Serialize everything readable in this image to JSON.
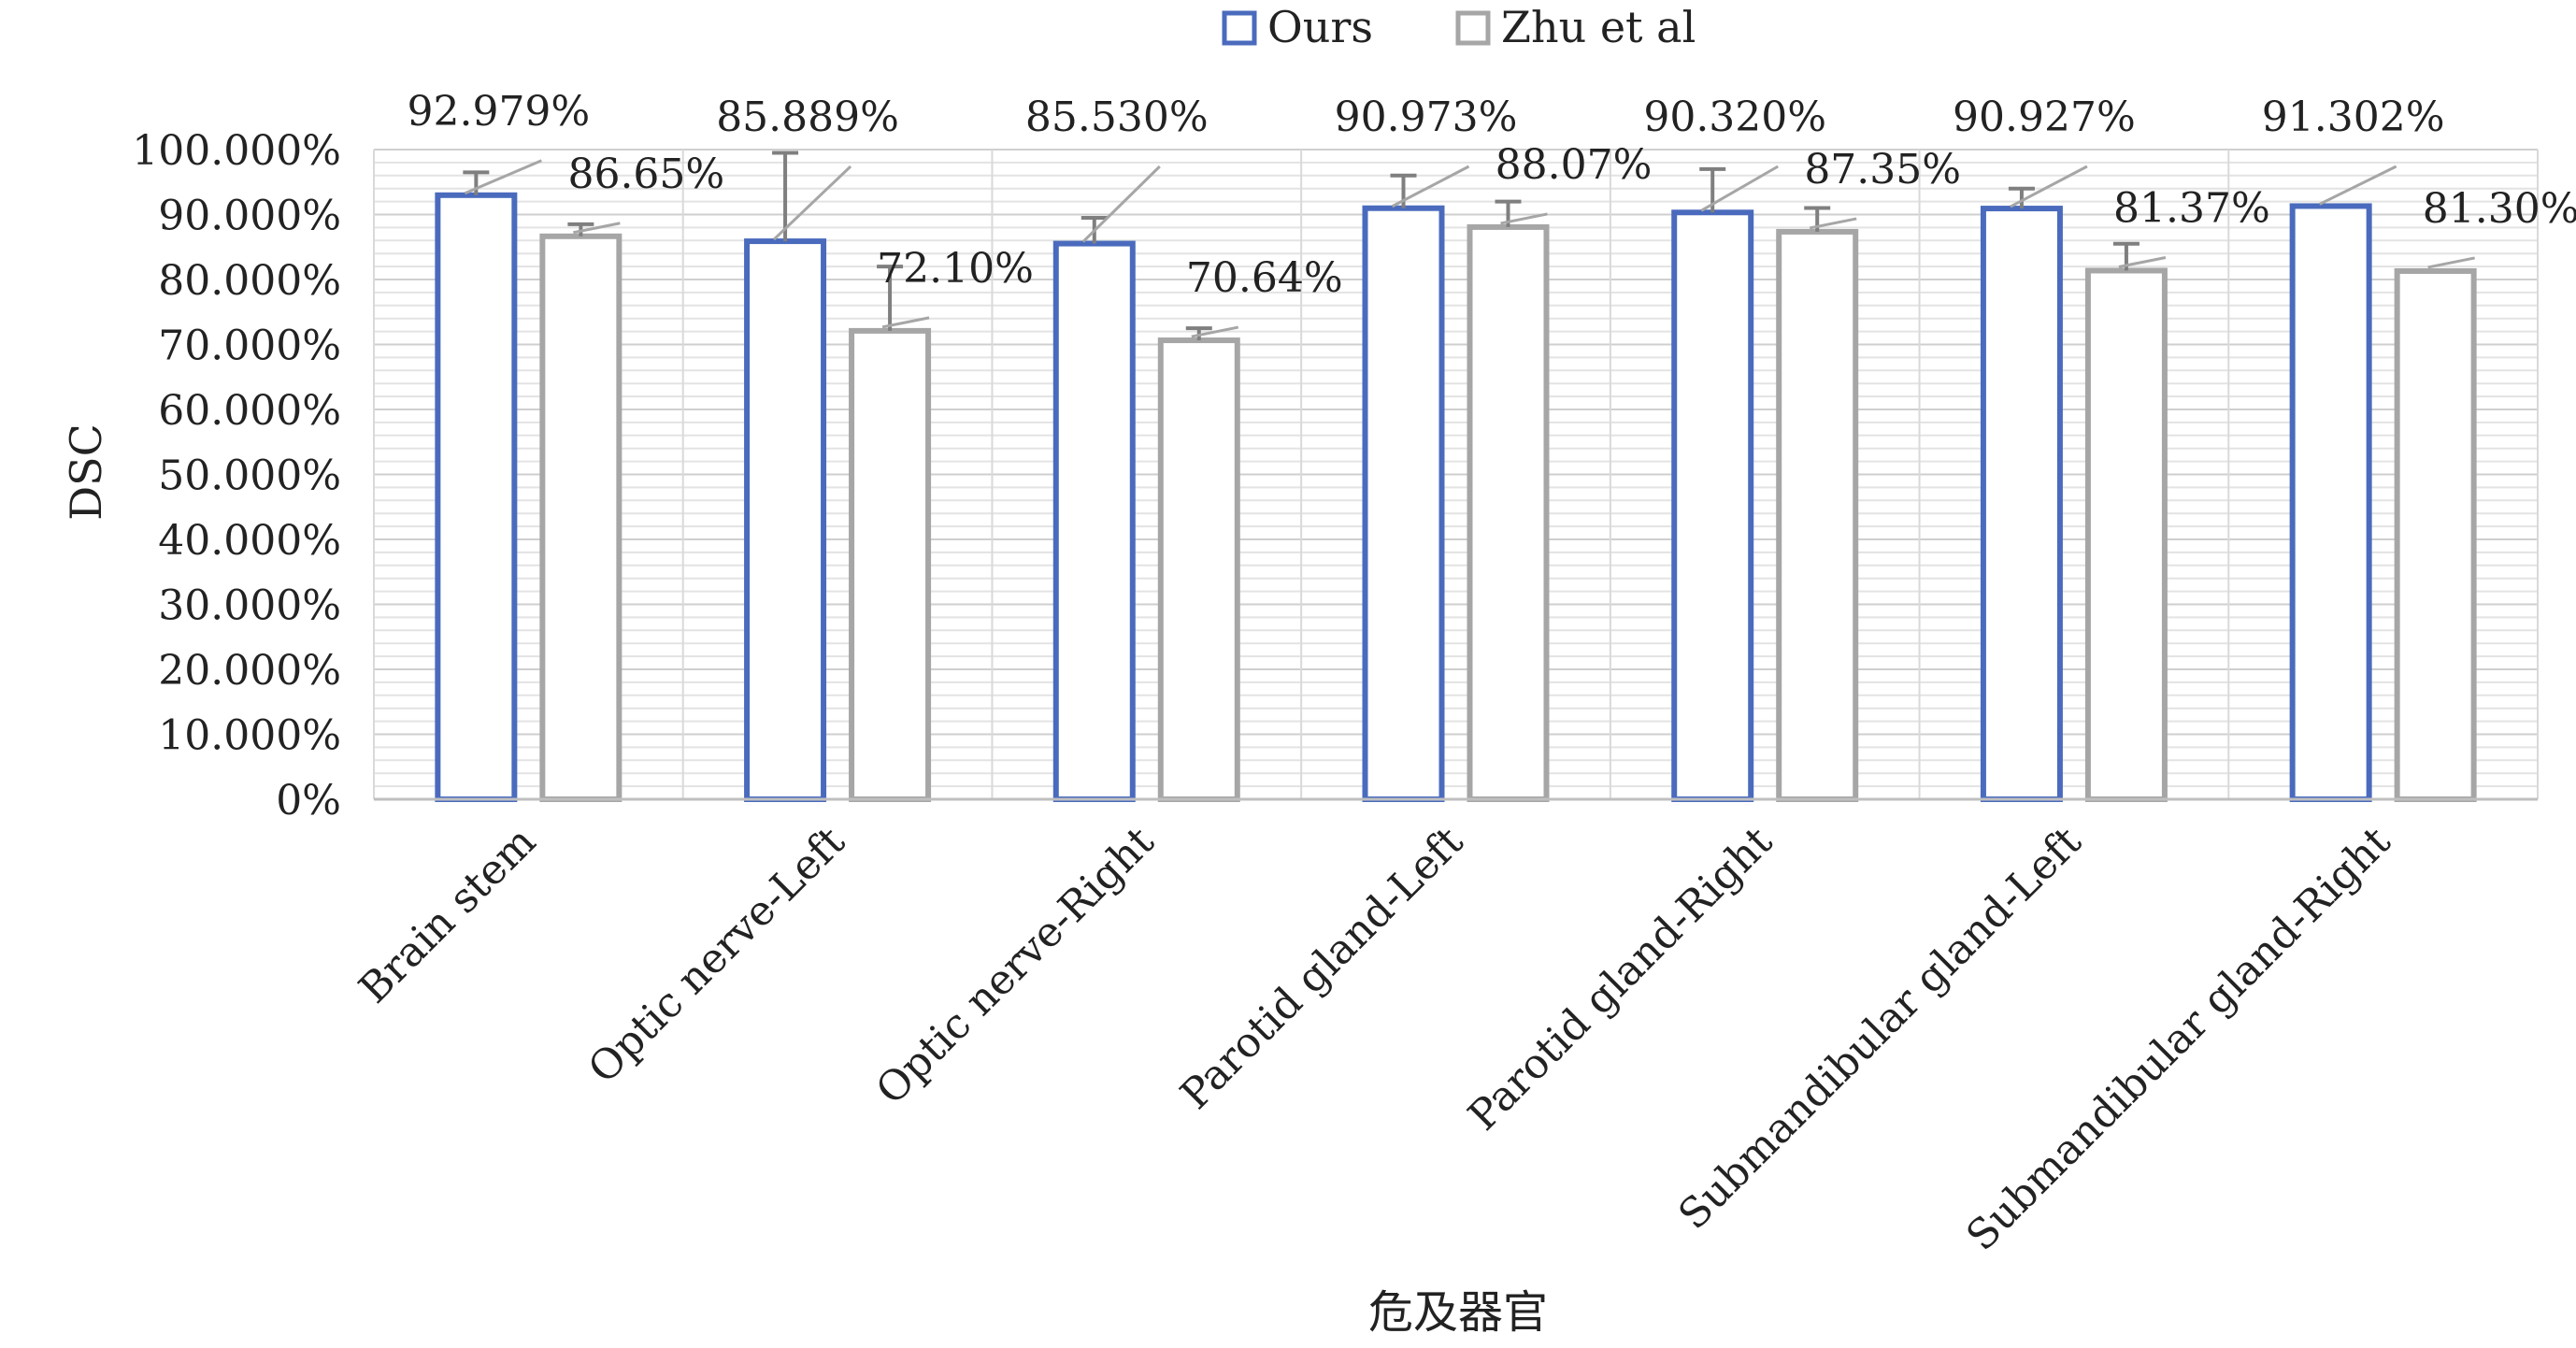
{
  "chart_data": {
    "type": "bar",
    "title": "",
    "xlabel": "危及器官",
    "ylabel": "DSC",
    "ylim": [
      0,
      100
    ],
    "y_tick_values": [
      0,
      10,
      20,
      30,
      40,
      50,
      60,
      70,
      80,
      90,
      100
    ],
    "y_tick_labels": [
      "0%",
      "10.000%",
      "20.000%",
      "30.000%",
      "40.000%",
      "50.000%",
      "60.000%",
      "70.000%",
      "80.000%",
      "90.000%",
      "100.000%"
    ],
    "grid": true,
    "legend_position": "top-center",
    "categories": [
      "Brain stem",
      "Optic nerve-Left",
      "Optic nerve-Right",
      "Parotid gland-Left",
      "Parotid gland-Right",
      "Submandibular gland-Left",
      "Submandibular gland-Right"
    ],
    "series": [
      {
        "name": "Ours",
        "color": "#4a6bbd",
        "values": [
          92.979,
          85.889,
          85.53,
          90.973,
          90.32,
          90.927,
          91.302
        ],
        "labels": [
          "92.979%",
          "85.889%",
          "85.530%",
          "90.973%",
          "90.320%",
          "90.927%",
          "91.302%"
        ],
        "error_upper": [
          96.5,
          99.5,
          89.5,
          96.0,
          97.0,
          94.0,
          null
        ]
      },
      {
        "name": "Zhu et al",
        "color": "#a6a6a6",
        "values": [
          86.65,
          72.1,
          70.64,
          88.07,
          87.35,
          81.37,
          81.3
        ],
        "labels": [
          "86.65%",
          "72.10%",
          "70.64%",
          "88.07%",
          "87.35%",
          "81.37%",
          "81.30%"
        ],
        "error_upper": [
          88.5,
          82.0,
          72.5,
          92.0,
          91.0,
          85.5,
          null
        ]
      }
    ]
  }
}
